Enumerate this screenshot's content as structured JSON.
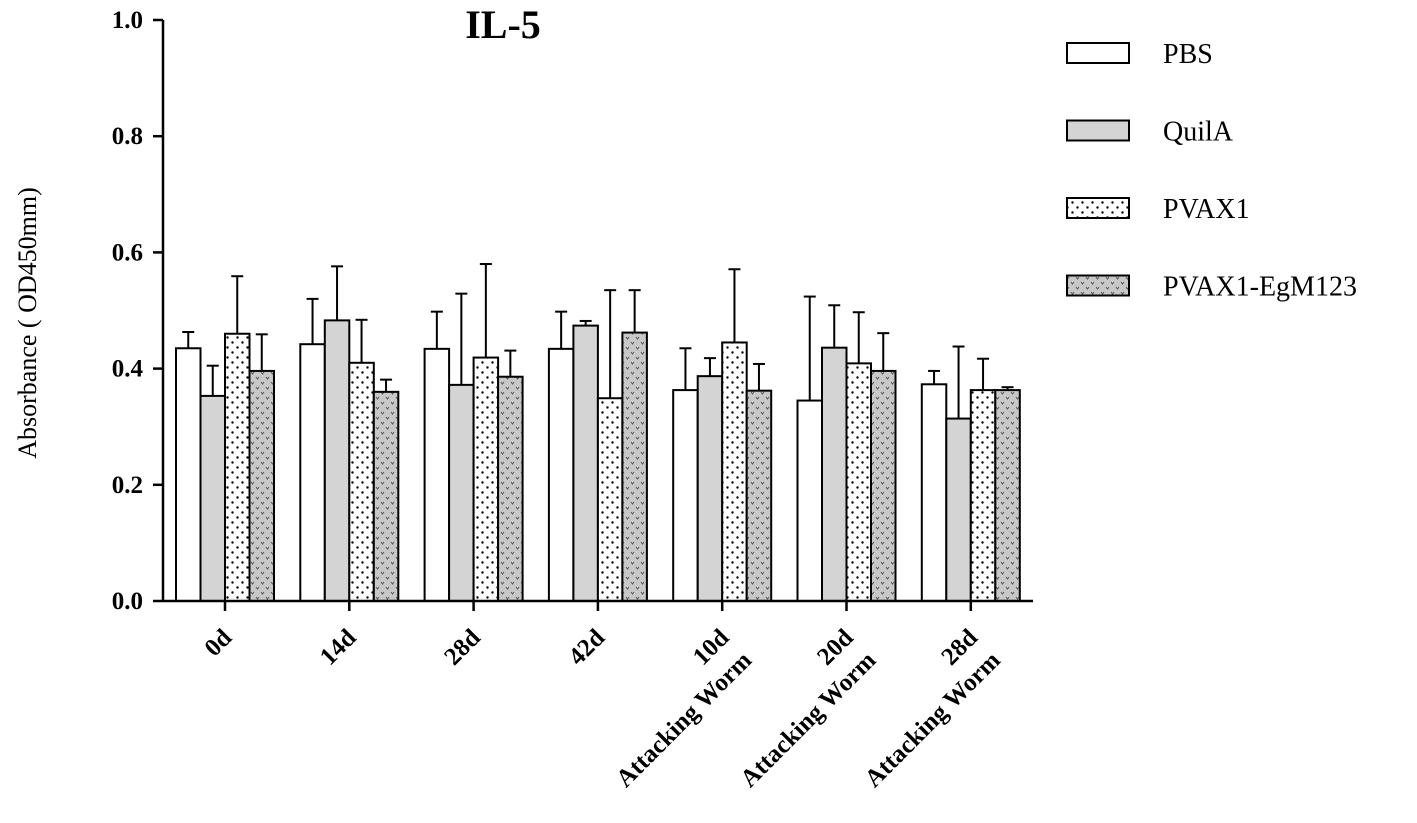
{
  "chart_data": {
    "type": "bar",
    "title": "IL-5",
    "ylabel": "Absorbance ( OD450mm)",
    "xlabel": "",
    "ylim": [
      0,
      1.0
    ],
    "yticks": [
      "0.0",
      "0.2",
      "0.4",
      "0.6",
      "0.8",
      "1.0"
    ],
    "categories": [
      "0d",
      "14d",
      "28d",
      "42d",
      "Attacking Worm 10d",
      "Attacking Worm 20d",
      "Attacking Worm 28d"
    ],
    "category_lines": [
      [
        "0d"
      ],
      [
        "14d"
      ],
      [
        "28d"
      ],
      [
        "42d"
      ],
      [
        "10d",
        "Attacking Worm"
      ],
      [
        "20d",
        "Attacking Worm"
      ],
      [
        "28d",
        "Attacking Worm"
      ]
    ],
    "series": [
      {
        "name": "PBS",
        "fill": "white",
        "values": [
          0.435,
          0.442,
          0.434,
          0.434,
          0.363,
          0.345,
          0.373
        ],
        "errors": [
          0.028,
          0.078,
          0.064,
          0.064,
          0.072,
          0.179,
          0.023
        ]
      },
      {
        "name": "QuilA",
        "fill": "gray",
        "values": [
          0.353,
          0.483,
          0.372,
          0.474,
          0.387,
          0.436,
          0.314
        ],
        "errors": [
          0.052,
          0.093,
          0.157,
          0.008,
          0.031,
          0.073,
          0.124
        ]
      },
      {
        "name": "PVAX1",
        "fill": "dots",
        "values": [
          0.46,
          0.41,
          0.419,
          0.349,
          0.445,
          0.409,
          0.363
        ],
        "errors": [
          0.099,
          0.074,
          0.161,
          0.186,
          0.126,
          0.088,
          0.054
        ]
      },
      {
        "name": "PVAX1-EgM123",
        "fill": "gray-pattern",
        "values": [
          0.396,
          0.36,
          0.386,
          0.462,
          0.362,
          0.396,
          0.363
        ],
        "errors": [
          0.063,
          0.021,
          0.045,
          0.073,
          0.046,
          0.065,
          0.005
        ]
      }
    ],
    "legend_position": "top-right",
    "grid": false,
    "colors": {
      "gray": "#d4d4d4",
      "axis": "#000000"
    }
  }
}
